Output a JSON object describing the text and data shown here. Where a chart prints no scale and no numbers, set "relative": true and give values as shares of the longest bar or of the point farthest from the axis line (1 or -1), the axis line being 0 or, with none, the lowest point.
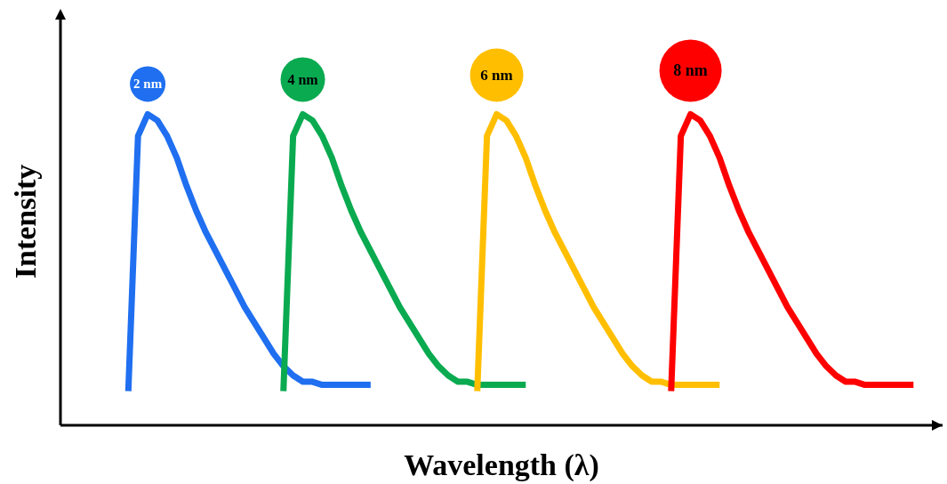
{
  "chart_data": {
    "type": "line",
    "relative": true,
    "xlabel": "Wavelength (λ)",
    "ylabel": "Intensity",
    "categories": [
      null,
      null,
      null,
      null,
      null,
      null,
      null,
      null,
      null,
      null,
      null,
      null,
      null,
      null,
      null,
      null,
      null,
      null,
      null,
      null,
      null,
      null,
      null,
      null,
      null,
      null,
      null,
      null,
      null,
      null,
      null,
      null,
      null,
      null,
      null,
      null,
      null,
      null,
      null,
      null,
      null,
      null,
      null,
      null,
      null,
      null,
      null,
      null,
      null,
      null,
      null,
      null,
      null,
      null,
      null,
      null,
      null,
      null,
      null,
      null,
      null,
      null,
      null,
      null,
      null,
      null,
      null,
      null,
      null,
      null,
      null,
      null,
      null,
      null,
      null,
      null,
      null,
      null,
      null,
      null,
      null,
      null,
      null,
      null,
      null,
      null,
      null,
      null,
      null,
      null,
      null,
      null
    ],
    "series": [
      {
        "name": "2 nm",
        "color": "#1f6ff0",
        "values": [
          null,
          null,
          null,
          null,
          null,
          null,
          null,
          0.11,
          0.93,
          1.0,
          0.98,
          0.93,
          0.86,
          0.77,
          0.69,
          0.62,
          0.56,
          0.5,
          0.44,
          0.38,
          0.33,
          0.28,
          0.23,
          0.19,
          0.16,
          0.14,
          0.14,
          0.13,
          0.13,
          0.13,
          0.13,
          0.13,
          0.13,
          null,
          null,
          null,
          null,
          null,
          null,
          null,
          null,
          null,
          null,
          null,
          null,
          null,
          null,
          null,
          null,
          null,
          null,
          null,
          null,
          null,
          null,
          null,
          null,
          null,
          null,
          null,
          null,
          null,
          null,
          null,
          null,
          null,
          null,
          null,
          null,
          null,
          null,
          null,
          null,
          null,
          null,
          null,
          null,
          null,
          null,
          null,
          null,
          null,
          null,
          null,
          null,
          null,
          null,
          null,
          null,
          null,
          null,
          null
        ]
      },
      {
        "name": "4 nm",
        "color": "#0aaa50",
        "values": [
          null,
          null,
          null,
          null,
          null,
          null,
          null,
          null,
          null,
          null,
          null,
          null,
          null,
          null,
          null,
          null,
          null,
          null,
          null,
          null,
          null,
          null,
          null,
          0.11,
          0.93,
          1.0,
          0.98,
          0.93,
          0.86,
          0.77,
          0.69,
          0.62,
          0.56,
          0.5,
          0.44,
          0.38,
          0.33,
          0.28,
          0.23,
          0.19,
          0.16,
          0.14,
          0.14,
          0.13,
          0.13,
          0.13,
          0.13,
          0.13,
          0.13,
          null,
          null,
          null,
          null,
          null,
          null,
          null,
          null,
          null,
          null,
          null,
          null,
          null,
          null,
          null,
          null,
          null,
          null,
          null,
          null,
          null,
          null,
          null,
          null,
          null,
          null,
          null,
          null,
          null,
          null,
          null,
          null,
          null,
          null,
          null,
          null,
          null,
          null,
          null,
          null,
          null,
          null,
          null
        ]
      },
      {
        "name": "6 nm",
        "color": "#ffbf00",
        "values": [
          null,
          null,
          null,
          null,
          null,
          null,
          null,
          null,
          null,
          null,
          null,
          null,
          null,
          null,
          null,
          null,
          null,
          null,
          null,
          null,
          null,
          null,
          null,
          null,
          null,
          null,
          null,
          null,
          null,
          null,
          null,
          null,
          null,
          null,
          null,
          null,
          null,
          null,
          null,
          null,
          null,
          null,
          null,
          0.11,
          0.93,
          1.0,
          0.98,
          0.93,
          0.86,
          0.77,
          0.69,
          0.62,
          0.56,
          0.5,
          0.44,
          0.38,
          0.33,
          0.28,
          0.23,
          0.19,
          0.16,
          0.14,
          0.14,
          0.13,
          0.13,
          0.13,
          0.13,
          0.13,
          0.13,
          null,
          null,
          null,
          null,
          null,
          null,
          null,
          null,
          null,
          null,
          null,
          null,
          null,
          null,
          null,
          null,
          null,
          null,
          null,
          null,
          null,
          null,
          null
        ]
      },
      {
        "name": "8 nm",
        "color": "#ff0000",
        "values": [
          null,
          null,
          null,
          null,
          null,
          null,
          null,
          null,
          null,
          null,
          null,
          null,
          null,
          null,
          null,
          null,
          null,
          null,
          null,
          null,
          null,
          null,
          null,
          null,
          null,
          null,
          null,
          null,
          null,
          null,
          null,
          null,
          null,
          null,
          null,
          null,
          null,
          null,
          null,
          null,
          null,
          null,
          null,
          null,
          null,
          null,
          null,
          null,
          null,
          null,
          null,
          null,
          null,
          null,
          null,
          null,
          null,
          null,
          null,
          null,
          null,
          null,
          null,
          0.11,
          0.93,
          1.0,
          0.98,
          0.93,
          0.86,
          0.77,
          0.69,
          0.62,
          0.56,
          0.5,
          0.44,
          0.38,
          0.33,
          0.28,
          0.23,
          0.19,
          0.16,
          0.14,
          0.14,
          0.13,
          0.13,
          0.13,
          0.13,
          0.13,
          0.13,
          null,
          null,
          null
        ]
      }
    ]
  }
}
